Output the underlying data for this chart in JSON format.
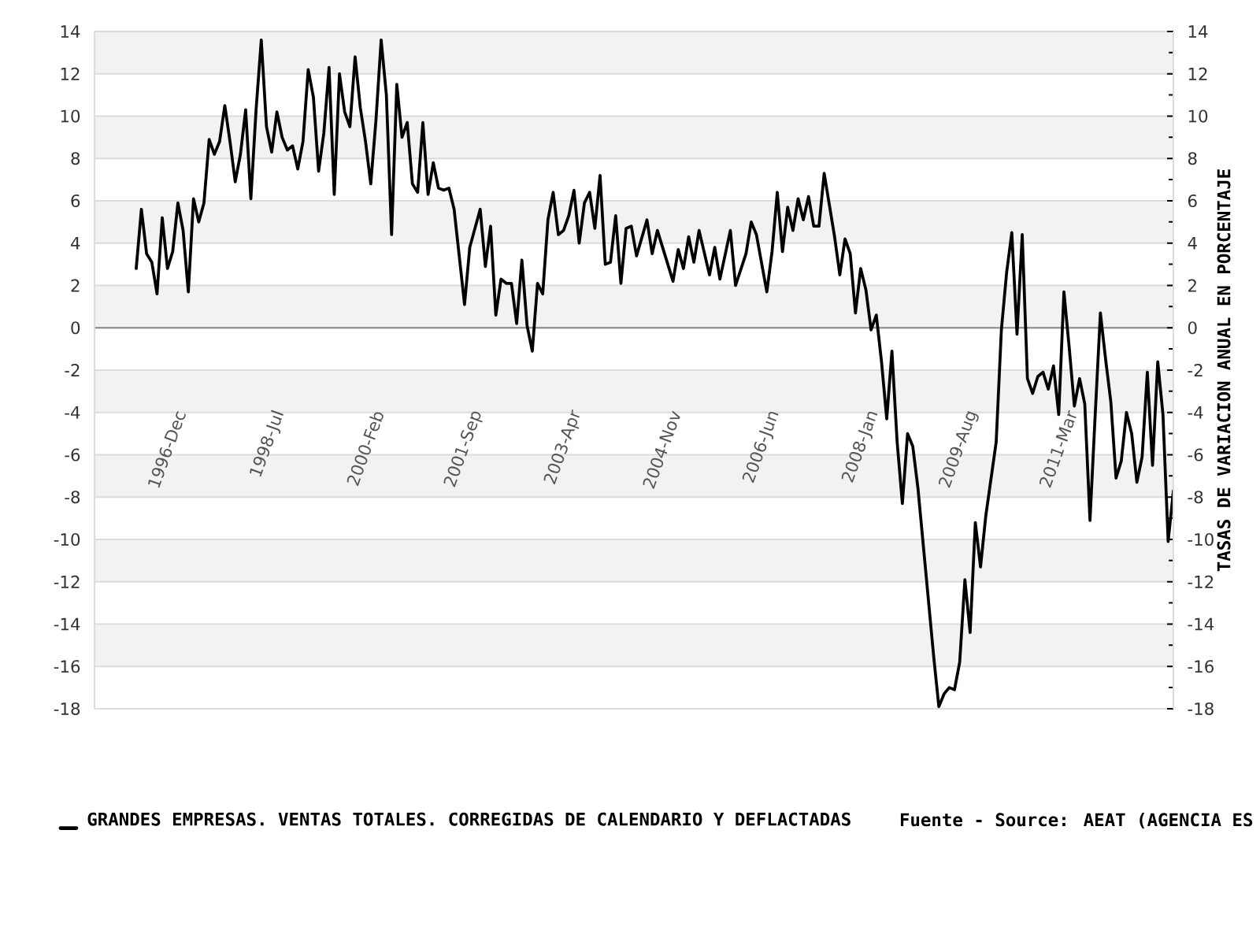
{
  "chart_data": {
    "type": "line",
    "x": [
      "1996-03",
      "1996-04",
      "1996-05",
      "1996-06",
      "1996-07",
      "1996-08",
      "1996-09",
      "1996-10",
      "1996-11",
      "1996-12",
      "1997-01",
      "1997-02",
      "1997-03",
      "1997-04",
      "1997-05",
      "1997-06",
      "1997-07",
      "1997-08",
      "1997-09",
      "1997-10",
      "1997-11",
      "1997-12",
      "1998-01",
      "1998-02",
      "1998-03",
      "1998-04",
      "1998-05",
      "1998-06",
      "1998-07",
      "1998-08",
      "1998-09",
      "1998-10",
      "1998-11",
      "1998-12",
      "1999-01",
      "1999-02",
      "1999-03",
      "1999-04",
      "1999-05",
      "1999-06",
      "1999-07",
      "1999-08",
      "1999-09",
      "1999-10",
      "1999-11",
      "1999-12",
      "2000-01",
      "2000-02",
      "2000-03",
      "2000-04",
      "2000-05",
      "2000-06",
      "2000-07",
      "2000-08",
      "2000-09",
      "2000-10",
      "2000-11",
      "2000-12",
      "2001-01",
      "2001-02",
      "2001-03",
      "2001-04",
      "2001-06",
      "2001-07",
      "2001-09",
      "2001-10",
      "2001-11",
      "2001-12",
      "2002-01",
      "2002-02",
      "2002-03",
      "2002-04",
      "2002-05",
      "2002-06",
      "2002-07",
      "2002-08",
      "2002-09",
      "2002-10",
      "2002-11",
      "2002-12",
      "2003-01",
      "2003-02",
      "2003-03",
      "2003-04",
      "2003-05",
      "2003-06",
      "2003-07",
      "2003-08",
      "2003-09",
      "2003-10",
      "2003-11",
      "2003-12",
      "2004-01",
      "2004-02",
      "2004-03",
      "2004-05",
      "2004-06",
      "2004-07",
      "2004-10",
      "2004-11",
      "2004-12",
      "2005-01",
      "2005-02",
      "2005-03",
      "2005-05",
      "2005-06",
      "2005-07",
      "2005-09",
      "2005-10",
      "2005-12",
      "2006-01",
      "2006-02",
      "2006-04",
      "2006-05",
      "2006-06",
      "2006-07",
      "2006-08",
      "2006-09",
      "2006-10",
      "2006-11",
      "2006-12",
      "2007-01",
      "2007-02",
      "2007-03",
      "2007-04",
      "2007-05",
      "2007-06",
      "2007-07",
      "2007-08",
      "2007-09",
      "2007-10",
      "2007-11",
      "2007-12",
      "2008-01",
      "2008-02",
      "2008-03",
      "2008-04",
      "2008-05",
      "2008-06",
      "2008-07",
      "2008-08",
      "2008-09",
      "2008-12",
      "2009-01",
      "2009-02",
      "2009-03",
      "2009-04",
      "2009-05",
      "2009-06",
      "2009-07",
      "2009-08",
      "2009-09",
      "2009-10",
      "2009-12",
      "2010-01",
      "2010-02",
      "2010-03",
      "2010-04",
      "2010-05",
      "2010-06",
      "2010-07",
      "2010-08",
      "2010-09",
      "2010-10",
      "2010-11",
      "2010-12",
      "2011-01",
      "2011-02",
      "2011-03",
      "2011-04",
      "2011-05",
      "2011-06",
      "2011-07",
      "2011-08",
      "2011-09",
      "2011-10",
      "2011-11",
      "2011-12",
      "2012-01",
      "2012-02",
      "2012-03",
      "2012-04",
      "2012-05",
      "2012-06",
      "2012-07",
      "2012-08",
      "2012-09",
      "2012-10"
    ],
    "series": [
      {
        "name": "GRANDES EMPRESAS. VENTAS TOTALES. CORREGIDAS DE CALENDARIO Y DEFLACTADAS",
        "color": "#000000",
        "values": [
          2.8,
          5.6,
          3.5,
          3.1,
          1.6,
          5.2,
          2.8,
          3.6,
          5.9,
          4.6,
          1.7,
          6.1,
          5.0,
          5.9,
          8.9,
          8.2,
          8.8,
          10.5,
          8.8,
          6.9,
          8.2,
          10.3,
          6.1,
          10.3,
          13.6,
          9.5,
          8.3,
          10.2,
          9.0,
          8.4,
          8.6,
          7.5,
          8.8,
          12.2,
          10.9,
          7.4,
          9.2,
          12.3,
          6.3,
          12.0,
          10.2,
          9.5,
          12.8,
          10.4,
          8.8,
          6.8,
          9.8,
          13.6,
          11.0,
          4.4,
          11.5,
          9.0,
          9.7,
          6.8,
          6.4,
          9.7,
          6.3,
          7.8,
          6.6,
          6.5,
          6.6,
          5.6,
          1.1,
          3.8,
          5.6,
          2.9,
          4.8,
          0.6,
          2.3,
          2.1,
          2.1,
          0.2,
          3.2,
          0.1,
          -1.1,
          2.1,
          1.6,
          5.1,
          6.4,
          4.4,
          4.6,
          5.3,
          6.5,
          4.0,
          5.9,
          6.4,
          4.7,
          7.2,
          3.0,
          3.1,
          5.3,
          2.1,
          4.7,
          4.8,
          3.4,
          5.1,
          3.5,
          4.6,
          2.2,
          3.7,
          2.8,
          4.3,
          3.1,
          4.6,
          2.5,
          3.8,
          2.3,
          4.6,
          2.0,
          3.5,
          5.0,
          4.4,
          1.7,
          3.6,
          6.4,
          3.6,
          5.7,
          4.6,
          6.1,
          5.1,
          6.2,
          4.8,
          4.8,
          7.3,
          5.8,
          4.3,
          2.5,
          4.2,
          3.5,
          0.7,
          2.8,
          1.8,
          -0.1,
          0.6,
          -1.6,
          -4.3,
          -1.1,
          -5.4,
          -8.3,
          -5.0,
          -5.6,
          -7.6,
          -15.5,
          -17.9,
          -17.3,
          -17.0,
          -17.1,
          -15.8,
          -11.9,
          -14.4,
          -9.2,
          -11.3,
          -8.9,
          -5.4,
          -0.1,
          2.6,
          4.5,
          -0.3,
          4.4,
          -2.4,
          -3.1,
          -2.3,
          -2.1,
          -2.9,
          -1.8,
          -4.1,
          1.7,
          -0.9,
          -3.7,
          -2.4,
          -3.6,
          -9.1,
          -4.1,
          0.7,
          -1.5,
          -3.5,
          -7.1,
          -6.3,
          -4.0,
          -5.0,
          -7.3,
          -6.1,
          -2.1,
          -6.5,
          -1.6,
          -4.1,
          -10.1,
          -7.7
        ]
      }
    ],
    "xlim": [
      "1995-07",
      "2012-10"
    ],
    "xticks": [
      {
        "value": "1996-12",
        "label": "1996-Dec"
      },
      {
        "value": "1998-07",
        "label": "1998-Jul"
      },
      {
        "value": "2000-02",
        "label": "2000-Feb"
      },
      {
        "value": "2001-09",
        "label": "2001-Sep"
      },
      {
        "value": "2003-04",
        "label": "2003-Apr"
      },
      {
        "value": "2004-11",
        "label": "2004-Nov"
      },
      {
        "value": "2006-06",
        "label": "2006-Jun"
      },
      {
        "value": "2008-01",
        "label": "2008-Jan"
      },
      {
        "value": "2009-08",
        "label": "2009-Aug"
      },
      {
        "value": "2011-03",
        "label": "2011-Mar"
      }
    ],
    "ylim": [
      -18,
      14
    ],
    "yticks": [
      -18,
      -16,
      -14,
      -12,
      -10,
      -8,
      -6,
      -4,
      -2,
      0,
      2,
      4,
      6,
      8,
      10,
      12,
      14
    ],
    "y2lim": [
      -18,
      14
    ],
    "y2ticks": [
      -18,
      -16,
      -14,
      -12,
      -10,
      -8,
      -6,
      -4,
      -2,
      0,
      2,
      4,
      6,
      8,
      10,
      12,
      14
    ],
    "y2label": "TASAS DE VARIACION ANUAL EN PORCENTAJE",
    "grid": "y",
    "legend": "bottom",
    "line_style": "solid",
    "annotations": [
      "Fuente - Source: AEAT (AGENCIA ES"
    ]
  }
}
